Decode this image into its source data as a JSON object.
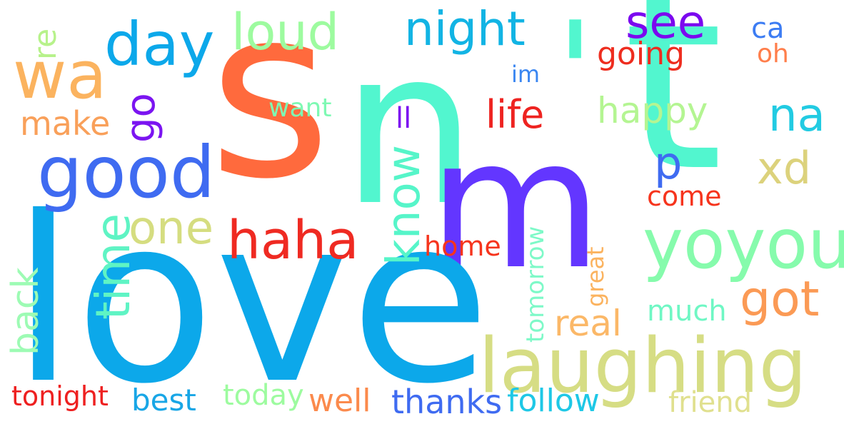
{
  "words": [
    {
      "key": "s",
      "text": "s",
      "color": "#ff6a3d"
    },
    {
      "key": "n",
      "text": "n",
      "color": "#52f6cf"
    },
    {
      "key": "apostrophe",
      "text": "'",
      "color": "#52f6cf"
    },
    {
      "key": "t",
      "text": "t",
      "color": "#52f6cf"
    },
    {
      "key": "m",
      "text": "m",
      "color": "#6336ff"
    },
    {
      "key": "love",
      "text": "love",
      "color": "#0ca8ea"
    },
    {
      "key": "wa",
      "text": "wa",
      "color": "#fbb35f"
    },
    {
      "key": "day",
      "text": "day",
      "color": "#0ca8ea"
    },
    {
      "key": "loud",
      "text": "loud",
      "color": "#9dfb9f"
    },
    {
      "key": "night",
      "text": "night",
      "color": "#12b4e4"
    },
    {
      "key": "see",
      "text": "see",
      "color": "#7b08ef"
    },
    {
      "key": "ca",
      "text": "ca",
      "color": "#3c7cf3"
    },
    {
      "key": "oh",
      "text": "oh",
      "color": "#ff7e4b"
    },
    {
      "key": "re",
      "text": "re",
      "color": "#b7f28b"
    },
    {
      "key": "going",
      "text": "going",
      "color": "#ee2d1f"
    },
    {
      "key": "im",
      "text": "im",
      "color": "#3a86f1"
    },
    {
      "key": "go",
      "text": "go",
      "color": "#7b14f1"
    },
    {
      "key": "want",
      "text": "want",
      "color": "#7ef9b3"
    },
    {
      "key": "make",
      "text": "make",
      "color": "#f9a05a"
    },
    {
      "key": "ll",
      "text": "ll",
      "color": "#7c0ff0"
    },
    {
      "key": "life",
      "text": "life",
      "color": "#ee2320"
    },
    {
      "key": "happy",
      "text": "happy",
      "color": "#b4f592"
    },
    {
      "key": "na",
      "text": "na",
      "color": "#22cbe2"
    },
    {
      "key": "good",
      "text": "good",
      "color": "#3f6bf1"
    },
    {
      "key": "p",
      "text": "p",
      "color": "#3f6bf1"
    },
    {
      "key": "xd",
      "text": "xd",
      "color": "#dcd27c"
    },
    {
      "key": "know",
      "text": "know",
      "color": "#56f5c9"
    },
    {
      "key": "come",
      "text": "come",
      "color": "#f6341d"
    },
    {
      "key": "time",
      "text": "time",
      "color": "#5ff4c4"
    },
    {
      "key": "one",
      "text": "one",
      "color": "#d5dd80"
    },
    {
      "key": "haha",
      "text": "haha",
      "color": "#ef2a22"
    },
    {
      "key": "yoyou",
      "text": "yoyou",
      "color": "#86fbac"
    },
    {
      "key": "home",
      "text": "home",
      "color": "#f6341d"
    },
    {
      "key": "tomorrow",
      "text": "tomorrow",
      "color": "#7ef9c8"
    },
    {
      "key": "great",
      "text": "great",
      "color": "#fbb35f"
    },
    {
      "key": "back",
      "text": "back",
      "color": "#9dfbb4"
    },
    {
      "key": "got",
      "text": "got",
      "color": "#fb9a55"
    },
    {
      "key": "real",
      "text": "real",
      "color": "#fbb868"
    },
    {
      "key": "much",
      "text": "much",
      "color": "#6ff7c4"
    },
    {
      "key": "laughing",
      "text": "laughing",
      "color": "#d6dd84"
    },
    {
      "key": "tonight",
      "text": "tonight",
      "color": "#ee2020"
    },
    {
      "key": "best",
      "text": "best",
      "color": "#18a6e6"
    },
    {
      "key": "today",
      "text": "today",
      "color": "#9dfb9f"
    },
    {
      "key": "well",
      "text": "well",
      "color": "#fb8a4c"
    },
    {
      "key": "thanks",
      "text": "thanks",
      "color": "#3f6bf1"
    },
    {
      "key": "follow",
      "text": "follow",
      "color": "#1ec8e6"
    },
    {
      "key": "friend",
      "text": "friend",
      "color": "#e0e08e"
    }
  ],
  "rotated_words": [
    "re",
    "go",
    "know",
    "time",
    "tomorrow",
    "great",
    "back"
  ]
}
